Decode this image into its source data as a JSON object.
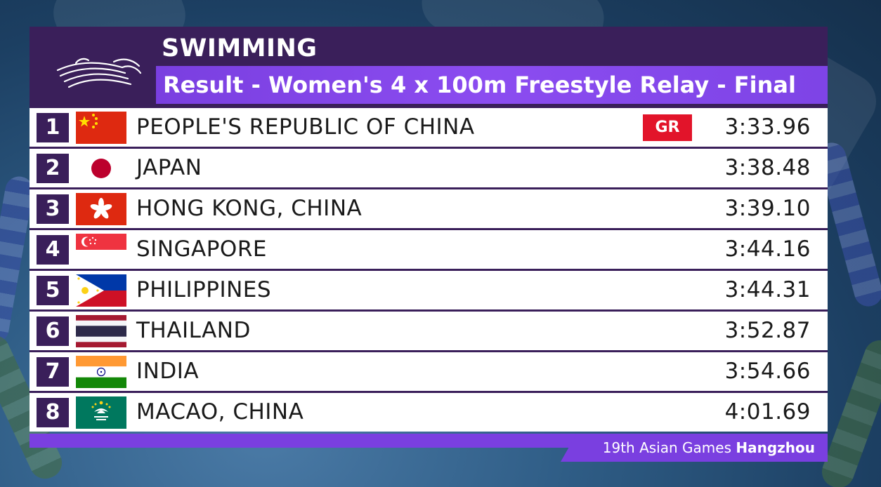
{
  "header": {
    "sport": "SWIMMING",
    "event": "Result - Women's 4 x 100m Freestyle Relay - Final"
  },
  "results": [
    {
      "rank": "1",
      "country": "PEOPLE'S REPUBLIC OF CHINA",
      "record": "GR",
      "time": "3:33.96",
      "flag": "china-flag-icon"
    },
    {
      "rank": "2",
      "country": "JAPAN",
      "record": "",
      "time": "3:38.48",
      "flag": "japan-flag-icon"
    },
    {
      "rank": "3",
      "country": "HONG KONG, CHINA",
      "record": "",
      "time": "3:39.10",
      "flag": "hong-kong-flag-icon"
    },
    {
      "rank": "4",
      "country": "SINGAPORE",
      "record": "",
      "time": "3:44.16",
      "flag": "singapore-flag-icon"
    },
    {
      "rank": "5",
      "country": "PHILIPPINES",
      "record": "",
      "time": "3:44.31",
      "flag": "philippines-flag-icon"
    },
    {
      "rank": "6",
      "country": "THAILAND",
      "record": "",
      "time": "3:52.87",
      "flag": "thailand-flag-icon"
    },
    {
      "rank": "7",
      "country": "INDIA",
      "record": "",
      "time": "3:54.66",
      "flag": "india-flag-icon"
    },
    {
      "rank": "8",
      "country": "MACAO, CHINA",
      "record": "",
      "time": "4:01.69",
      "flag": "macao-flag-icon"
    }
  ],
  "footer": {
    "games": "19th Asian Games",
    "city": "Hangzhou"
  },
  "colors": {
    "panel": "#3a1f5a",
    "accent": "#7a3fe0",
    "record": "#e2142a"
  }
}
